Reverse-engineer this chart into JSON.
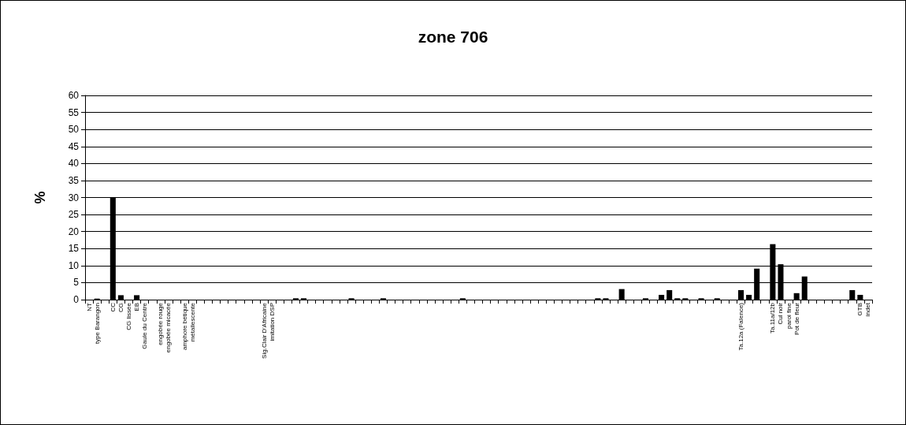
{
  "chart_data": {
    "type": "bar",
    "title": "zone 706",
    "ylabel": "%",
    "categories": [
      "NT",
      "type Barangon",
      null,
      "CC",
      "CG",
      "CG lissée",
      "EB",
      "Gaule du Centre",
      null,
      "engobée rouge",
      "engobée micacée",
      null,
      "amphore bétique",
      "métallescente",
      null,
      null,
      null,
      null,
      null,
      null,
      null,
      null,
      "Sig.Clair D'Africaine",
      "imitation DSP",
      null,
      null,
      null,
      null,
      null,
      null,
      null,
      null,
      null,
      null,
      null,
      null,
      null,
      null,
      null,
      null,
      null,
      null,
      null,
      null,
      null,
      null,
      null,
      null,
      null,
      null,
      null,
      null,
      null,
      null,
      null,
      null,
      null,
      null,
      null,
      null,
      null,
      null,
      null,
      null,
      null,
      null,
      null,
      null,
      null,
      null,
      null,
      null,
      null,
      null,
      null,
      null,
      null,
      null,
      null,
      null,
      null,
      null,
      "Ta.12a (Faïence)",
      null,
      null,
      null,
      "Ta.11a/12b",
      "Cul noir",
      "paroi fine",
      "Pot de fleur",
      null,
      null,
      null,
      null,
      null,
      null,
      null,
      "GTB",
      "indet"
    ],
    "values": [
      0,
      0.3,
      0,
      30,
      1.3,
      0,
      1.3,
      0,
      0,
      0,
      0,
      0,
      0,
      0,
      0,
      0,
      0,
      0,
      0,
      0,
      0,
      0,
      0,
      0,
      0,
      0,
      0.4,
      0.4,
      0,
      0,
      0,
      0,
      0,
      0.4,
      0,
      0,
      0,
      0.4,
      0,
      0,
      0,
      0,
      0,
      0,
      0,
      0,
      0,
      0.4,
      0,
      0,
      0,
      0,
      0,
      0,
      0,
      0,
      0,
      0,
      0,
      0,
      0,
      0,
      0,
      0,
      0.4,
      0.4,
      0,
      3.1,
      0,
      0,
      0.4,
      0,
      1.4,
      2.8,
      0.4,
      0.4,
      0,
      0.4,
      0,
      0.4,
      0,
      0,
      2.8,
      1.4,
      9.1,
      0,
      16.3,
      10.4,
      0,
      1.9,
      6.8,
      0,
      0,
      0,
      0,
      0,
      2.8,
      1.4,
      0
    ],
    "color": "#000000",
    "ylim": [
      0,
      60
    ],
    "yticks": [
      0,
      5,
      10,
      15,
      20,
      25,
      30,
      35,
      40,
      45,
      50,
      55,
      60
    ],
    "grid": "y"
  }
}
